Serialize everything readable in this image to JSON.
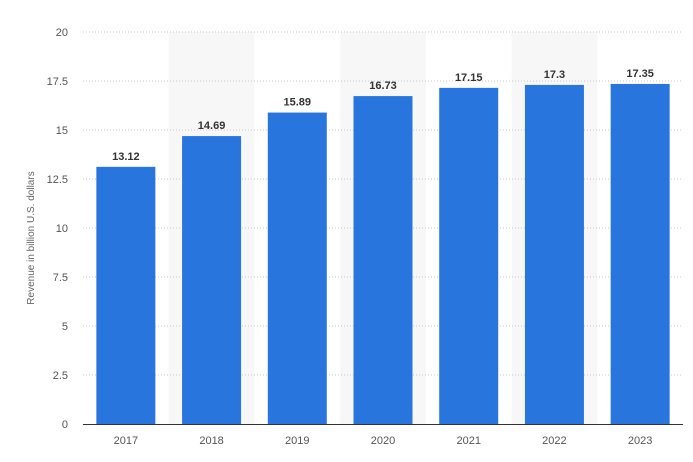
{
  "chart_data": {
    "type": "bar",
    "categories": [
      "2017",
      "2018",
      "2019",
      "2020",
      "2021",
      "2022",
      "2023"
    ],
    "values": [
      13.12,
      14.69,
      15.89,
      16.73,
      17.15,
      17.3,
      17.35
    ],
    "value_labels": [
      "13.12",
      "14.69",
      "15.89",
      "16.73",
      "17.15",
      "17.3",
      "17.35"
    ],
    "title": "",
    "xlabel": "",
    "ylabel": "Revenue in billion U.S. dollars",
    "ylim": [
      0,
      20
    ],
    "yticks": [
      0,
      2.5,
      5,
      7.5,
      10,
      12.5,
      15,
      17.5,
      20
    ],
    "ytick_labels": [
      "0",
      "2.5",
      "5",
      "7.5",
      "10",
      "12.5",
      "15",
      "17.5",
      "20"
    ],
    "grid": true,
    "legend": "none",
    "colors": {
      "bar": "#2876dd",
      "band": "#f7f7f7",
      "grid": "#c8c8c8",
      "axis": "#333333"
    }
  }
}
